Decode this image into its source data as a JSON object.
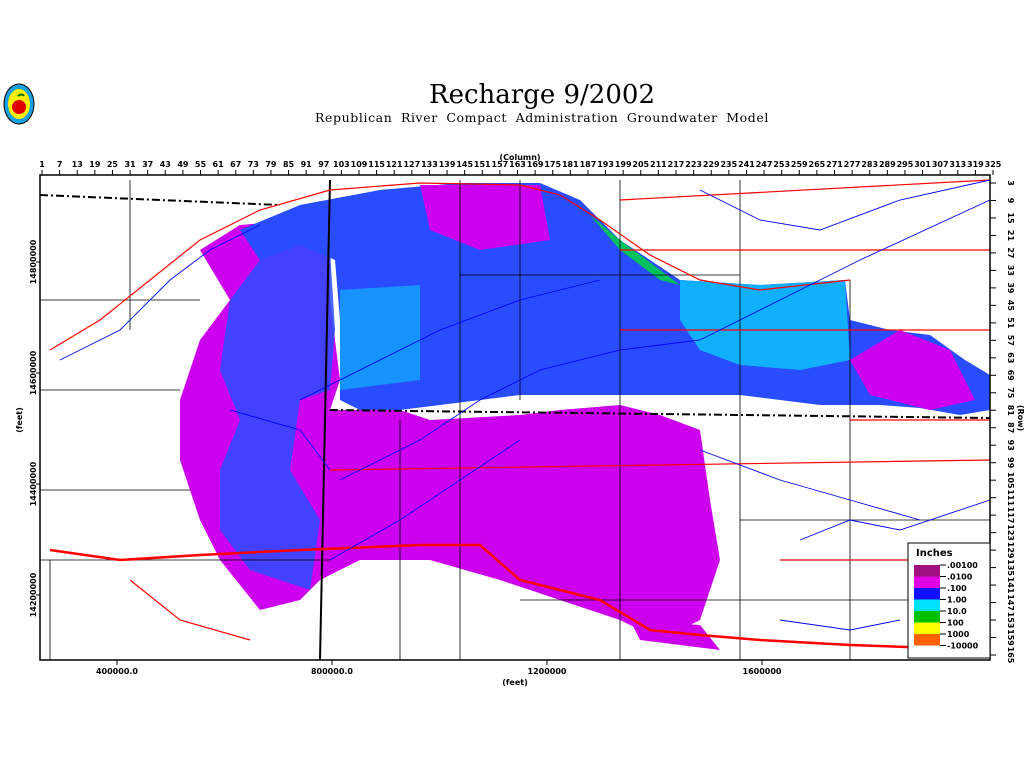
{
  "title": "Recharge 9/2002",
  "subtitle": "Republican River Compact Administration Groundwater Model",
  "logo_label": "logo",
  "axes": {
    "top_label": "(Column)",
    "right_label": "(Row)",
    "left_label": "(feet)",
    "bottom_label": "(feet)",
    "columns": [
      1,
      7,
      13,
      19,
      25,
      31,
      37,
      43,
      49,
      55,
      61,
      67,
      73,
      79,
      85,
      91,
      97,
      103,
      109,
      115,
      121,
      127,
      133,
      139,
      145,
      151,
      157,
      163,
      169,
      175,
      181,
      187,
      193,
      199,
      205,
      211,
      217,
      223,
      229,
      235,
      241,
      247,
      253,
      259,
      265,
      271,
      277,
      283,
      289,
      295,
      301,
      307,
      313,
      319,
      325
    ],
    "rows": [
      3,
      9,
      15,
      21,
      27,
      33,
      39,
      45,
      51,
      57,
      63,
      69,
      75,
      81,
      87,
      93,
      99,
      105,
      111,
      117,
      123,
      129,
      135,
      141,
      147,
      153,
      159,
      165
    ],
    "northing": [
      "14800000",
      "14600000",
      "14400000",
      "14200000"
    ],
    "easting": [
      "400000.0",
      "800000.0",
      "1200000",
      "1600000"
    ]
  },
  "legend": {
    "title": "Inches",
    "labels": [
      ".00100",
      ".0100",
      ".100",
      "1.00",
      "10.0",
      "100",
      "1000",
      "-10000"
    ],
    "colors": [
      "#a01080",
      "#e000e0",
      "#1010ff",
      "#00e0ff",
      "#00c000",
      "#ffff00",
      "#ff6000"
    ]
  },
  "colors": {
    "recharge_low": "#cc00ee",
    "recharge_mid": "#1a3cff",
    "recharge_high": "#00b8ff",
    "roads": "#ff0000",
    "rivers": "#0000ff",
    "boundaries": "#000000"
  }
}
